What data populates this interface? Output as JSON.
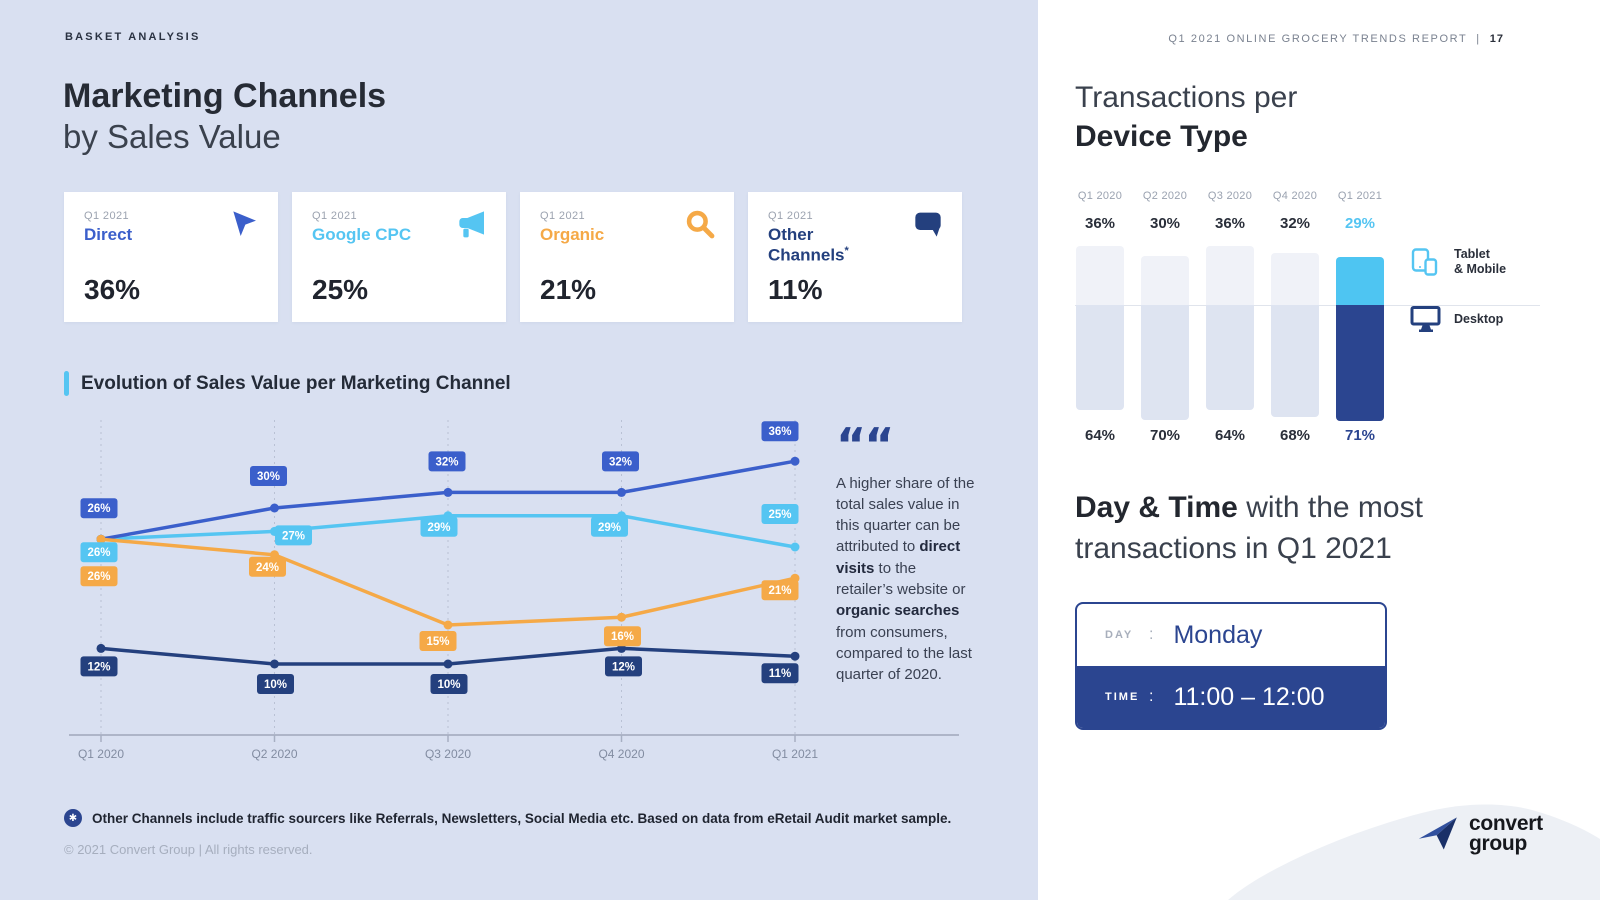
{
  "page": {
    "eyebrow": "BASKET ANALYSIS",
    "header_right": {
      "report": "Q1 2021 ONLINE GROCERY TRENDS REPORT",
      "sep": "|",
      "page_num": "17"
    },
    "copyright": "© 2021 Convert Group  |  All rights reserved."
  },
  "left": {
    "title_line1": "Marketing Channels",
    "title_line2": "by Sales Value",
    "cards": [
      {
        "period": "Q1 2021",
        "name": "Direct",
        "value": "36%",
        "color": "#3B5FCB",
        "icon": "cursor-icon"
      },
      {
        "period": "Q1 2021",
        "name": "Google CPC",
        "value": "25%",
        "color": "#55C5F2",
        "icon": "megaphone-icon"
      },
      {
        "period": "Q1 2021",
        "name": "Organic",
        "value": "21%",
        "color": "#F5A947",
        "icon": "search-icon"
      },
      {
        "period": "Q1 2021",
        "name": "Other Channels",
        "asterisk": "*",
        "value": "11%",
        "color": "#24407E",
        "icon": "speech-bubble-icon"
      }
    ],
    "section_title": "Evolution of Sales Value per Marketing Channel",
    "quote": {
      "glyph": "““",
      "pre": "A higher share of the total sales value in this quarter can be attributed to ",
      "bold1": "direct visits",
      "mid": " to the retailer’s website or ",
      "bold2": "organic searches",
      "post": " from consumers, compared to the last quarter of 2020."
    },
    "footnote_glyph": "✱",
    "footnote": "Other Channels include traffic sourcers like Referrals, Newsletters, Social Media etc. Based on data from eRetail Audit market sample."
  },
  "right": {
    "title_line1": "Transactions per",
    "title_line2": "Device Type",
    "legend": [
      {
        "label_line1": "Tablet",
        "label_line2": "& Mobile",
        "icon": "tablet-mobile-icon",
        "color": "#55C5F2"
      },
      {
        "label_line1": "Desktop",
        "label_line2": "",
        "icon": "desktop-icon",
        "color": "#24407E"
      }
    ],
    "heading2_bold": "Day & Time",
    "heading2_rest": " with the most",
    "heading2_line2": "transactions in Q1 2021",
    "daytime": {
      "day_label": "DAY",
      "colon": ":",
      "day_value": "Monday",
      "time_label": "TIME",
      "time_value": "11:00 – 12:00"
    },
    "logo": {
      "line1": "convert",
      "line2": "group"
    }
  },
  "colors": {
    "left_panel_bg": "#D9E0F1",
    "direct_blue": "#3B5FCB",
    "google_lightblue": "#55C5F2",
    "organic_orange": "#F5A947",
    "other_navy": "#24407E",
    "box_navy": "#2B4590",
    "muted_bar_top": "#F0F2F8",
    "muted_bar_bottom": "#DEE4F1"
  },
  "chart_data": [
    {
      "type": "line",
      "title": "Evolution of Sales Value per Marketing Channel",
      "x": [
        "Q1 2020",
        "Q2 2020",
        "Q3 2020",
        "Q4 2020",
        "Q1 2021"
      ],
      "unit": "%",
      "ylim": [
        0,
        42
      ],
      "grid": "vertical-dashed",
      "legend_position": "none",
      "series": [
        {
          "name": "Direct",
          "color": "#3B5FCB",
          "values": [
            26,
            30,
            32,
            32,
            36
          ],
          "label_offsets": [
            [
              -2,
              -31
            ],
            [
              -6,
              -32
            ],
            [
              -1,
              -31
            ],
            [
              -1,
              -31
            ],
            [
              -15,
              -30
            ]
          ]
        },
        {
          "name": "Google CPC",
          "color": "#55C5F2",
          "values": [
            26,
            27,
            29,
            29,
            25
          ],
          "label_offsets": [
            [
              -2,
              13
            ],
            [
              19,
              4
            ],
            [
              -9,
              11
            ],
            [
              -12,
              11
            ],
            [
              -15,
              -33
            ]
          ]
        },
        {
          "name": "Organic",
          "color": "#F5A947",
          "values": [
            26,
            24,
            15,
            16,
            21
          ],
          "label_offsets": [
            [
              -2,
              37
            ],
            [
              -7,
              12
            ],
            [
              -10,
              16
            ],
            [
              1,
              19
            ],
            [
              -15,
              12
            ]
          ]
        },
        {
          "name": "Other Channels",
          "color": "#24407E",
          "values": [
            12,
            10,
            10,
            12,
            11
          ],
          "label_offsets": [
            [
              -2,
              18
            ],
            [
              1,
              20
            ],
            [
              1,
              20
            ],
            [
              2,
              18
            ],
            [
              -15,
              17
            ]
          ]
        }
      ]
    },
    {
      "type": "bar",
      "subtype": "diverging-stacked",
      "title": "Transactions per Device Type",
      "categories": [
        "Q1 2020",
        "Q2 2020",
        "Q3 2020",
        "Q4 2020",
        "Q1 2021"
      ],
      "unit": "%",
      "series": [
        {
          "name": "Tablet & Mobile",
          "values": [
            36,
            30,
            36,
            32,
            29
          ]
        },
        {
          "name": "Desktop",
          "values": [
            64,
            70,
            64,
            68,
            71
          ]
        }
      ],
      "highlight_index": 4,
      "colors": {
        "tablet_highlight": "#4EC5F2",
        "desktop_highlight": "#2B4590",
        "tablet_muted": "#F0F2F8",
        "desktop_muted": "#DEE4F1",
        "tablet_label_highlight": "#55C5F2",
        "desktop_label_highlight": "#2B4590"
      }
    }
  ]
}
